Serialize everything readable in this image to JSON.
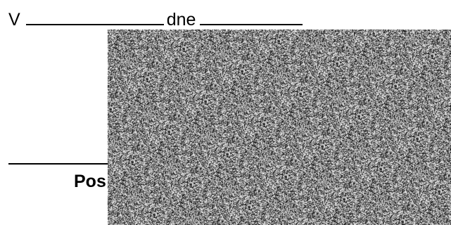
{
  "place_date": {
    "place_prefix": "V",
    "date_prefix": "dne"
  },
  "signature": {
    "label_visible": "Pos"
  },
  "obscured_region": {
    "pattern": "static-noise"
  }
}
